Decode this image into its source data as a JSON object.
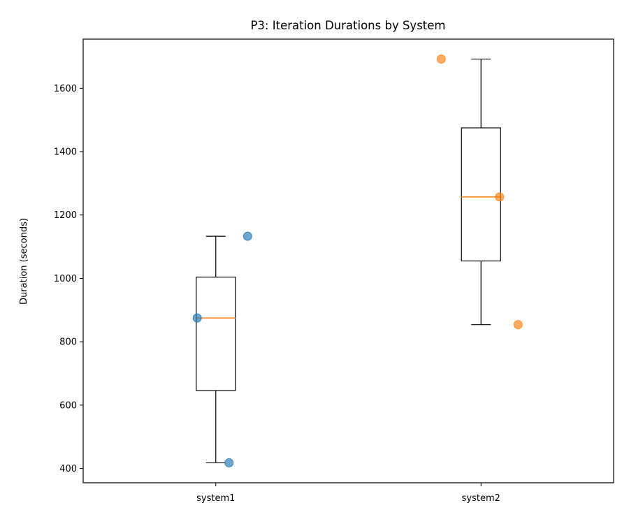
{
  "chart_data": {
    "type": "box",
    "title": "P3: Iteration Durations by System",
    "xlabel": "",
    "ylabel": "Duration (seconds)",
    "categories": [
      "system1",
      "system2"
    ],
    "ylim": [
      355,
      1755
    ],
    "yticks": [
      400,
      600,
      800,
      1000,
      1200,
      1400,
      1600
    ],
    "boxes": [
      {
        "name": "system1",
        "min": 418,
        "q1": 646,
        "median": 875,
        "q3": 1004,
        "max": 1133
      },
      {
        "name": "system2",
        "min": 854,
        "q1": 1055,
        "median": 1257,
        "q3": 1475,
        "max": 1692
      }
    ],
    "points": [
      {
        "category": "system1",
        "jitter": -0.07,
        "value": 875
      },
      {
        "category": "system1",
        "jitter": 0.12,
        "value": 1133
      },
      {
        "category": "system1",
        "jitter": 0.05,
        "value": 418
      },
      {
        "category": "system2",
        "jitter": -0.15,
        "value": 1692
      },
      {
        "category": "system2",
        "jitter": 0.14,
        "value": 854
      },
      {
        "category": "system2",
        "jitter": 0.07,
        "value": 1257
      }
    ],
    "colors": {
      "system1": "#1f77b4",
      "system2": "#ff7f0e",
      "median": "#ff7f0e",
      "box": "#000000"
    },
    "grid": false
  }
}
